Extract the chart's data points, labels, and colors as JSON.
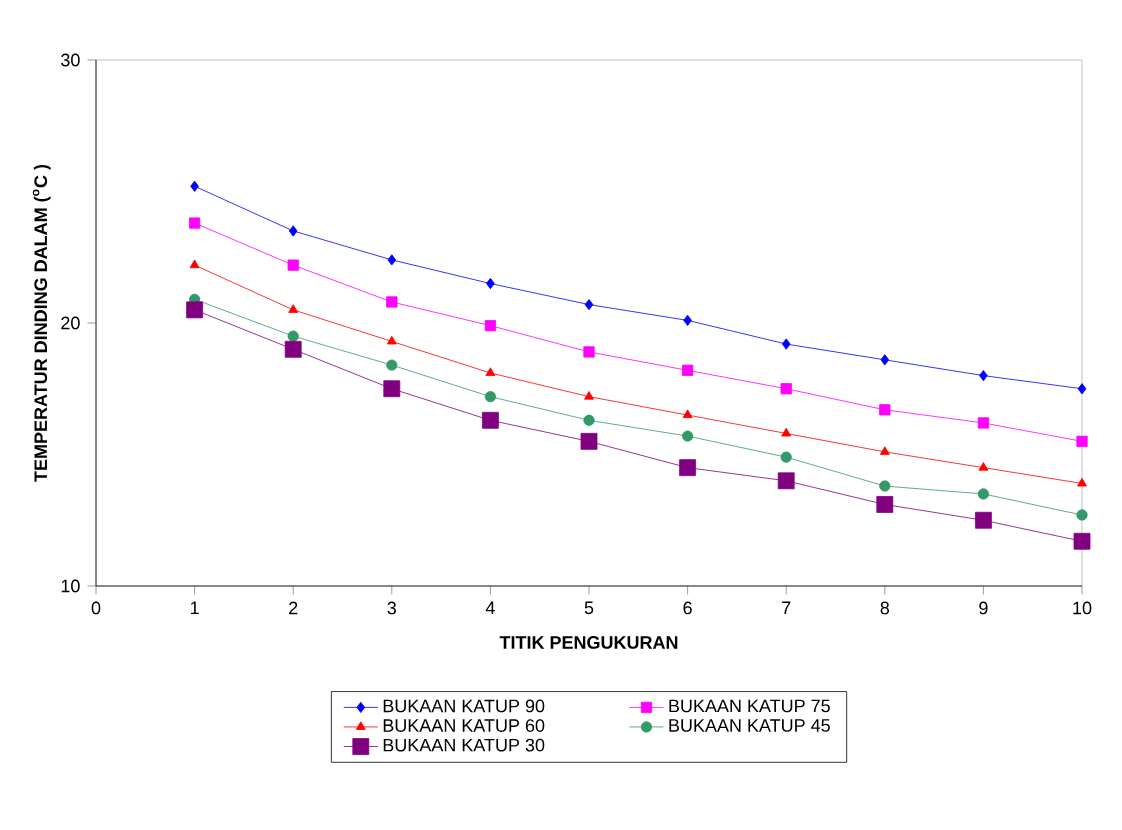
{
  "chart_data": {
    "type": "line",
    "xlabel": "TITIK PENGUKURAN",
    "ylabel": "TEMPERATUR DINDING DALAM ($^{o}$C )",
    "x": [
      1,
      2,
      3,
      4,
      5,
      6,
      7,
      8,
      9,
      10
    ],
    "xlim": [
      0,
      10
    ],
    "xticks": [
      0,
      1,
      2,
      3,
      4,
      5,
      6,
      7,
      8,
      9,
      10
    ],
    "ylim": [
      10,
      30
    ],
    "yticks": [
      10,
      20,
      30
    ],
    "grid": false,
    "legend": "bottom",
    "series": [
      {
        "name": "BUKAAN KATUP 90",
        "color": "#0000ff",
        "marker": "diamond",
        "values": [
          25.2,
          23.5,
          22.4,
          21.5,
          20.7,
          20.1,
          19.2,
          18.6,
          18.0,
          17.5
        ]
      },
      {
        "name": "BUKAAN KATUP 75",
        "color": "#ff00ff",
        "marker": "square",
        "values": [
          23.8,
          22.2,
          20.8,
          19.9,
          18.9,
          18.2,
          17.5,
          16.7,
          16.2,
          15.5
        ]
      },
      {
        "name": "BUKAAN KATUP 60",
        "color": "#ff0000",
        "marker": "triangle",
        "values": [
          22.2,
          20.5,
          19.3,
          18.1,
          17.2,
          16.5,
          15.8,
          15.1,
          14.5,
          13.9
        ]
      },
      {
        "name": "BUKAAN KATUP 45",
        "color": "#339966",
        "marker": "circle",
        "values": [
          20.9,
          19.5,
          18.4,
          17.2,
          16.3,
          15.7,
          14.9,
          13.8,
          13.5,
          12.7
        ]
      },
      {
        "name": "BUKAAN KATUP 30",
        "color": "#800080",
        "marker": "square",
        "values": [
          20.5,
          19.0,
          17.5,
          16.3,
          15.5,
          14.5,
          14.0,
          13.1,
          12.5,
          11.7
        ]
      }
    ]
  }
}
